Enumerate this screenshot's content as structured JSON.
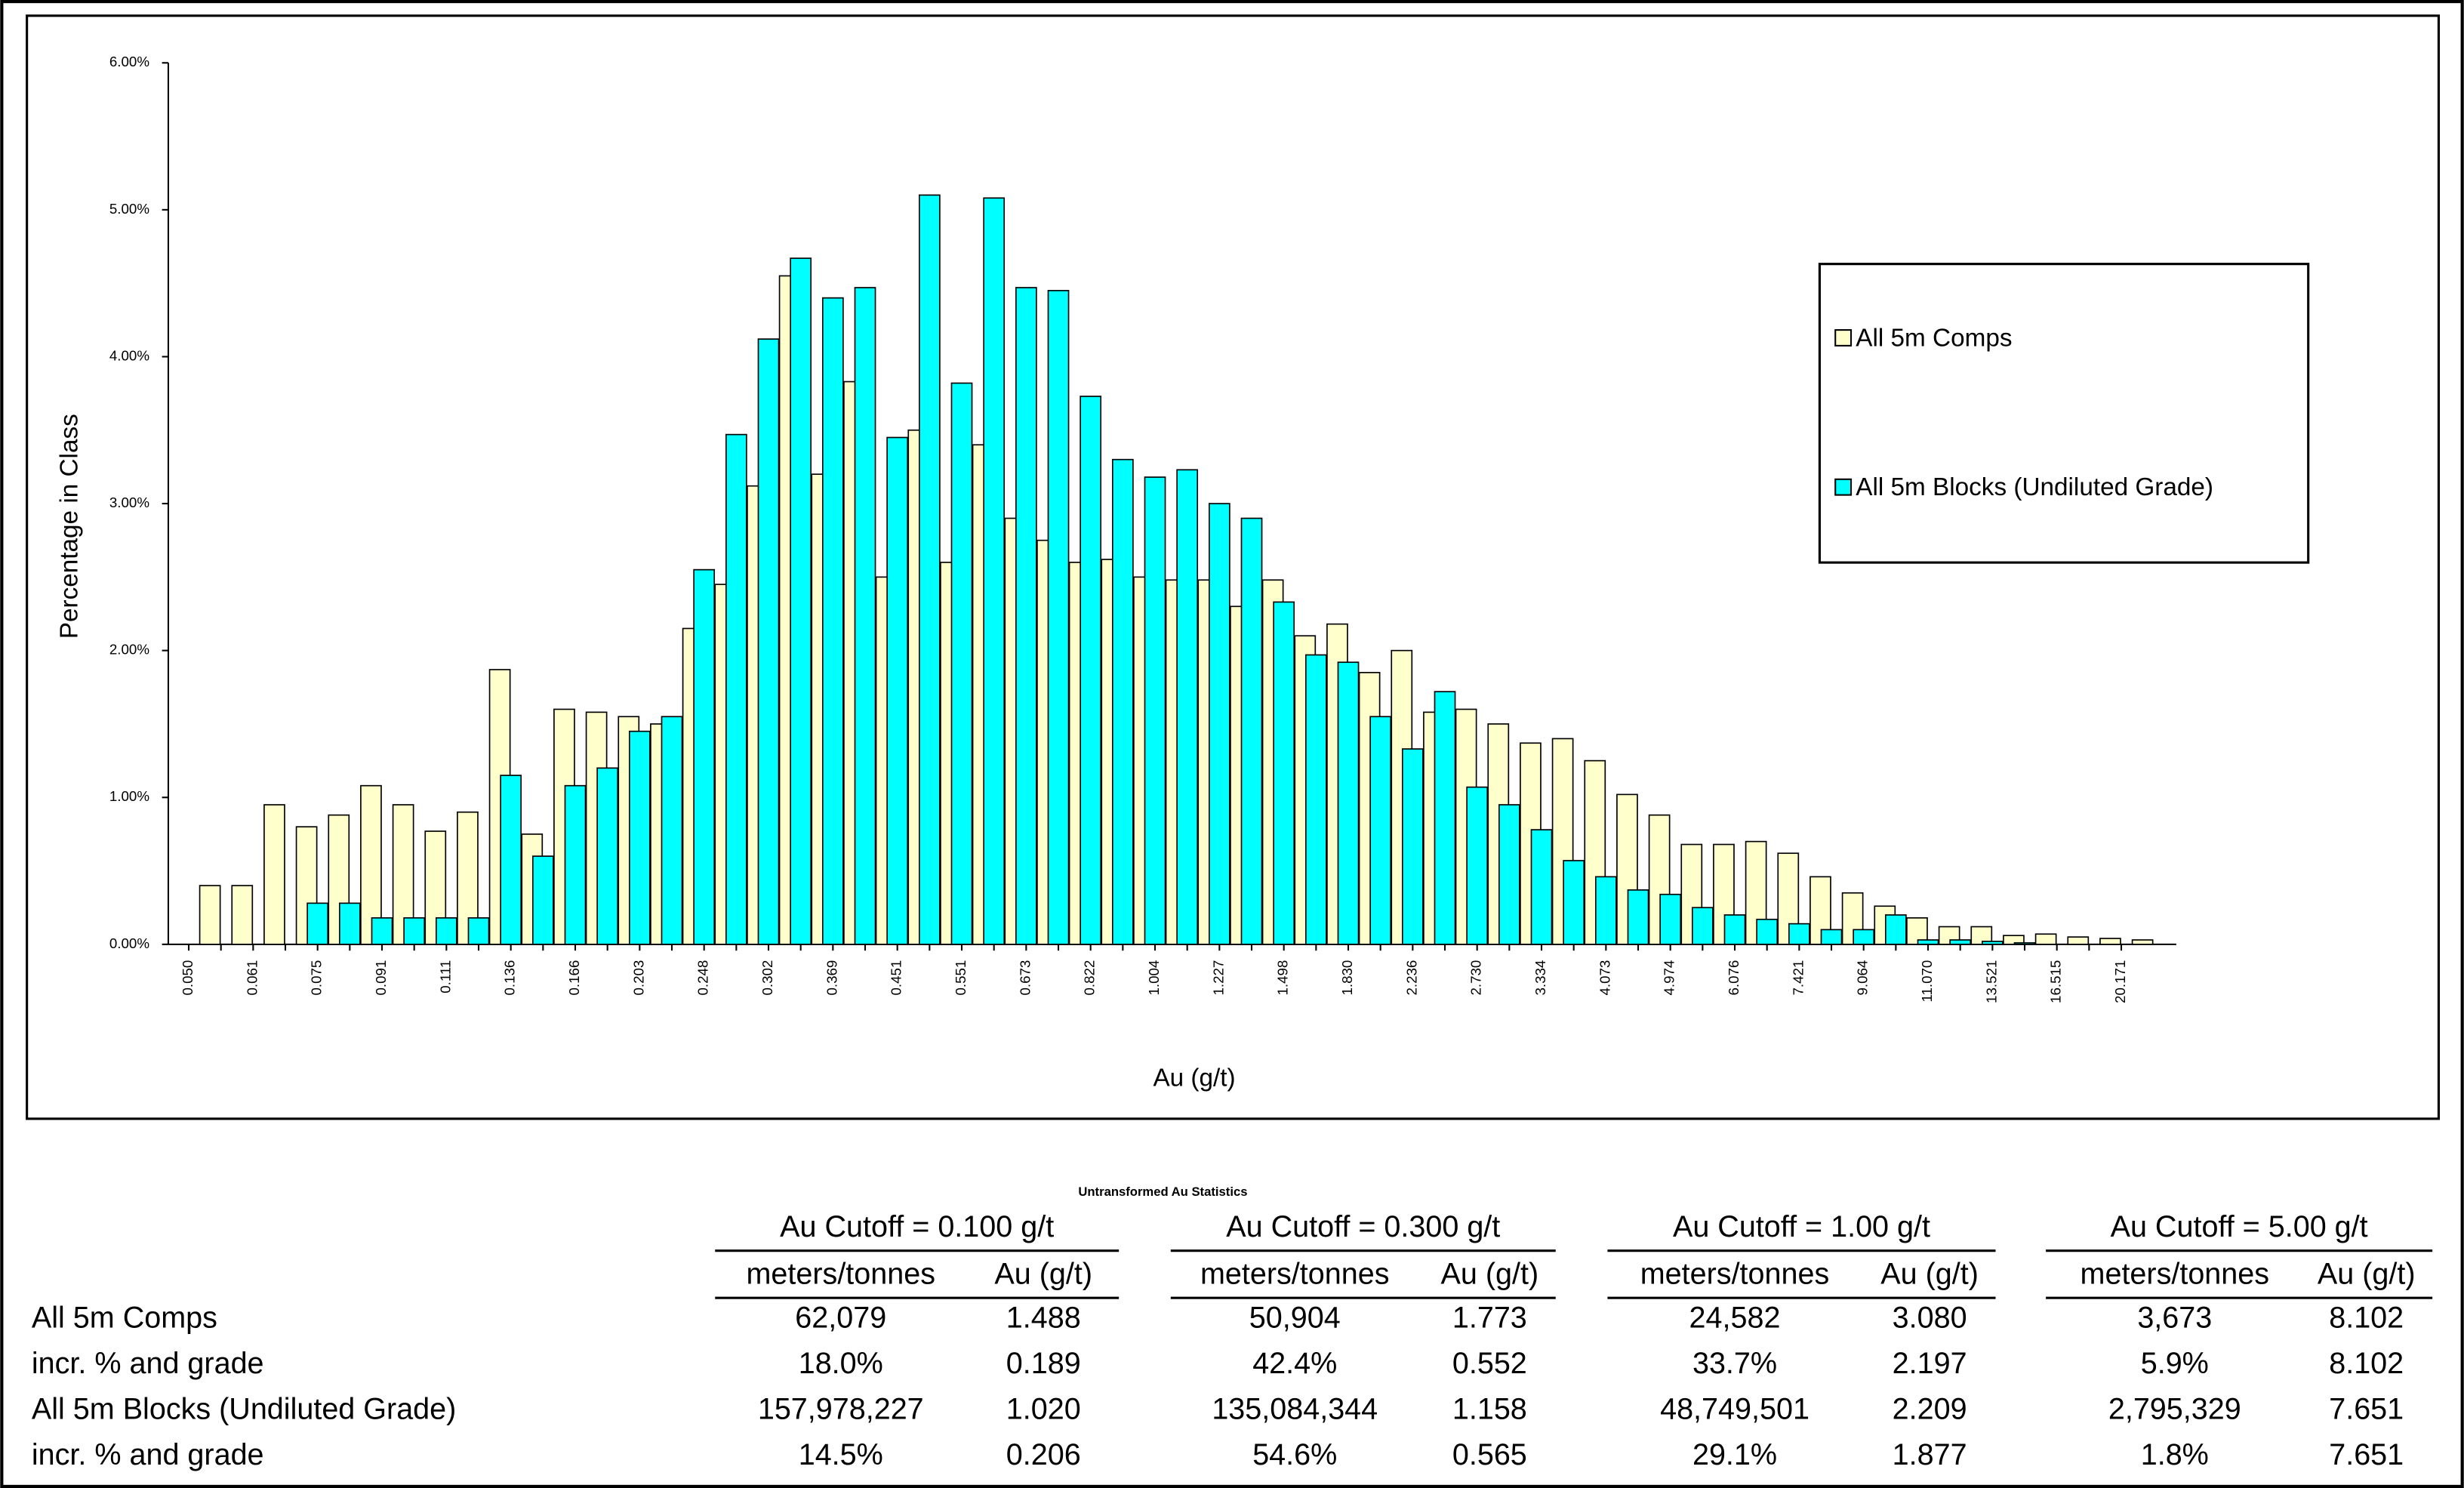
{
  "chart_data": {
    "type": "bar",
    "x_label": "Au (g/t)",
    "y_label": "Percentage in Class",
    "categories": [
      "0.050",
      null,
      "0.061",
      null,
      "0.075",
      null,
      "0.091",
      null,
      "0.111",
      null,
      "0.136",
      null,
      "0.166",
      null,
      "0.203",
      null,
      "0.248",
      null,
      "0.302",
      null,
      "0.369",
      null,
      "0.451",
      null,
      "0.551",
      null,
      "0.673",
      null,
      "0.822",
      null,
      "1.004",
      null,
      "1.227",
      null,
      "1.498",
      null,
      "1.830",
      null,
      "2.236",
      null,
      "2.730",
      null,
      "3.334",
      null,
      "4.073",
      null,
      "4.974",
      null,
      "6.076",
      null,
      "7.421",
      null,
      "9.064",
      null,
      "11.070",
      null,
      "13.521",
      null,
      "16.515",
      null,
      "20.171"
    ],
    "series": [
      {
        "name": "All 5m Comps",
        "color": "#ffffcc",
        "values": [
          0.4,
          0.4,
          0.95,
          0.8,
          0.88,
          1.08,
          0.95,
          0.77,
          0.9,
          1.87,
          0.75,
          1.6,
          1.58,
          1.55,
          1.5,
          2.15,
          2.45,
          3.12,
          4.55,
          3.2,
          3.83,
          2.5,
          3.5,
          2.6,
          3.4,
          2.9,
          2.75,
          2.6,
          2.62,
          2.5,
          2.48,
          2.48,
          2.3,
          2.48,
          2.1,
          2.18,
          1.85,
          2.0,
          1.58,
          1.6,
          1.5,
          1.37,
          1.4,
          1.25,
          1.02,
          0.88,
          0.68,
          0.68,
          0.7,
          0.62,
          0.46,
          0.35,
          0.26,
          0.18,
          0.12,
          0.12,
          0.06,
          0.07,
          0.05,
          0.04,
          0.03
        ]
      },
      {
        "name": "All 5m Blocks (Undiluted Grade)",
        "color": "#00ffff",
        "values": [
          0,
          0,
          0,
          0.28,
          0.28,
          0.18,
          0.18,
          0.18,
          0.18,
          1.15,
          0.6,
          1.08,
          1.2,
          1.45,
          1.55,
          2.55,
          3.47,
          4.12,
          4.67,
          4.4,
          4.47,
          3.45,
          5.1,
          3.82,
          5.08,
          4.47,
          4.45,
          3.73,
          3.3,
          3.18,
          3.23,
          3.0,
          2.9,
          2.33,
          1.97,
          1.92,
          1.55,
          1.33,
          1.72,
          1.07,
          0.95,
          0.78,
          0.57,
          0.46,
          0.37,
          0.34,
          0.25,
          0.2,
          0.17,
          0.14,
          0.1,
          0.1,
          0.2,
          0.03,
          0.03,
          0.02,
          0.01,
          0,
          0,
          0,
          0
        ]
      }
    ],
    "ylim": [
      0,
      6
    ],
    "yticks": [
      {
        "value": 0,
        "label": "0.00%"
      },
      {
        "value": 1,
        "label": "1.00%"
      },
      {
        "value": 2,
        "label": "2.00%"
      },
      {
        "value": 3,
        "label": "3.00%"
      },
      {
        "value": 4,
        "label": "4.00%"
      },
      {
        "value": 5,
        "label": "5.00%"
      },
      {
        "value": 6,
        "label": "6.00%"
      }
    ],
    "legend": "right"
  },
  "table": {
    "title": "Untransformed Au Statistics",
    "groups": [
      {
        "label": "Au Cutoff = 0.100 g/t",
        "columns": [
          "meters/tonnes",
          "Au (g/t)"
        ]
      },
      {
        "label": "Au Cutoff = 0.300 g/t",
        "columns": [
          "meters/tonnes",
          "Au (g/t)"
        ]
      },
      {
        "label": "Au Cutoff = 1.00 g/t",
        "columns": [
          "meters/tonnes",
          "Au (g/t)"
        ]
      },
      {
        "label": "Au Cutoff = 5.00 g/t",
        "columns": [
          "meters/tonnes",
          "Au (g/t)"
        ]
      }
    ],
    "rows": [
      {
        "label": "All 5m Comps",
        "cells": [
          "62,079",
          "1.488",
          "50,904",
          "1.773",
          "24,582",
          "3.080",
          "3,673",
          "8.102"
        ]
      },
      {
        "label": "incr. % and grade",
        "cells": [
          "18.0%",
          "0.189",
          "42.4%",
          "0.552",
          "33.7%",
          "2.197",
          "5.9%",
          "8.102"
        ]
      },
      {
        "label": "All 5m Blocks (Undiluted Grade)",
        "cells": [
          "157,978,227",
          "1.020",
          "135,084,344",
          "1.158",
          "48,749,501",
          "2.209",
          "2,795,329",
          "7.651"
        ]
      },
      {
        "label": "incr. % and grade",
        "cells": [
          "14.5%",
          "0.206",
          "54.6%",
          "0.565",
          "29.1%",
          "1.877",
          "1.8%",
          "7.651"
        ]
      }
    ]
  }
}
